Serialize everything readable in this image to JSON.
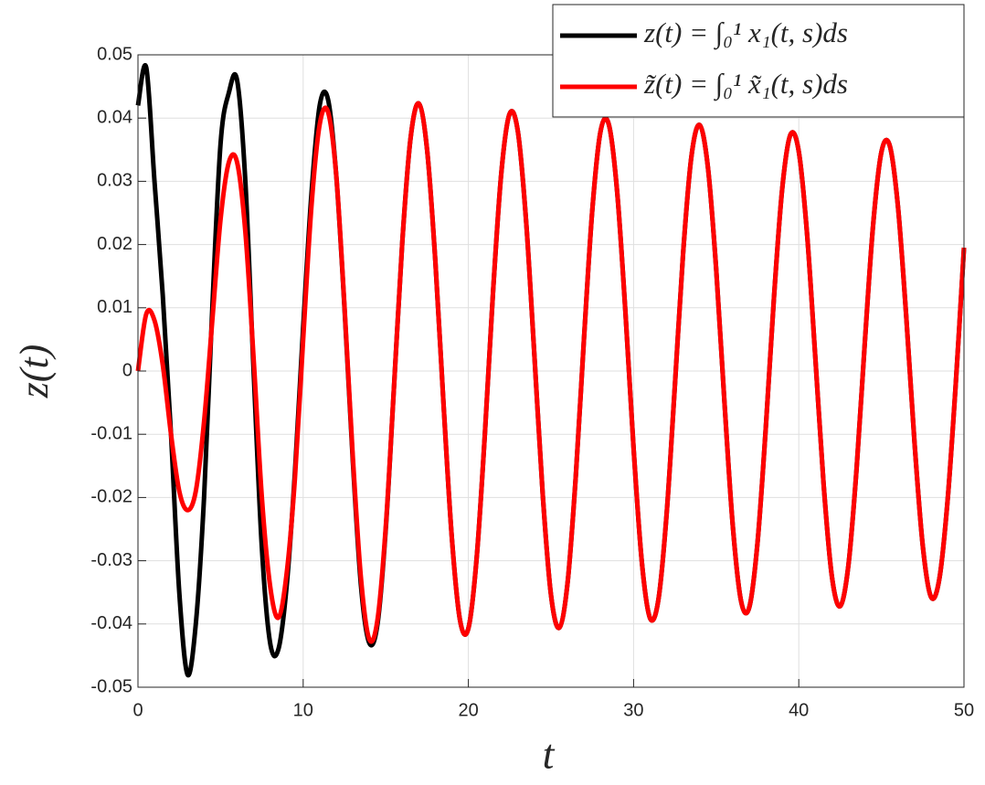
{
  "chart_data": {
    "type": "line",
    "xlabel": "t",
    "ylabel": "z(t)",
    "xlim": [
      0,
      50
    ],
    "ylim": [
      -0.05,
      0.05
    ],
    "xticks": [
      0,
      10,
      20,
      30,
      40,
      50
    ],
    "yticks": [
      -0.05,
      -0.04,
      -0.03,
      -0.02,
      -0.01,
      0,
      0.01,
      0.02,
      0.03,
      0.04,
      0.05
    ],
    "grid": true,
    "legend": "northeast",
    "x": [
      0,
      0.5,
      1,
      1.5,
      2,
      2.5,
      3,
      3.5,
      4,
      4.5,
      5,
      5.5,
      6,
      6.5,
      7,
      7.5,
      8,
      8.5,
      9,
      9.5,
      10,
      10.5,
      11,
      11.5,
      12,
      12.5,
      13,
      13.5,
      14,
      14.5,
      15,
      15.5,
      16,
      16.5,
      17,
      17.5,
      18,
      18.5,
      19,
      19.5,
      20,
      20.5,
      21,
      21.5,
      22,
      22.5,
      23,
      23.5,
      24,
      24.5,
      25,
      25.5,
      26,
      26.5,
      27,
      27.5,
      28,
      28.5,
      29,
      29.5,
      30,
      30.5,
      31,
      31.5,
      32,
      32.5,
      33,
      33.5,
      34,
      34.5,
      35,
      35.5,
      36,
      36.5,
      37,
      37.5,
      38,
      38.5,
      39,
      39.5,
      40,
      40.5,
      41,
      41.5,
      42,
      42.5,
      43,
      43.5,
      44,
      44.5,
      45,
      45.5,
      46,
      46.5,
      47,
      47.5,
      48,
      48.5,
      49,
      49.5,
      50
    ],
    "series": [
      {
        "name": "z(t) = ∫₀¹ x₁(t, s)ds",
        "color": "#000000",
        "values": [
          0.042,
          0.048,
          0.03,
          0.012,
          -0.01,
          -0.035,
          -0.048,
          -0.04,
          -0.02,
          0.01,
          0.036,
          0.044,
          0.046,
          0.03,
          0.0,
          -0.028,
          -0.043,
          -0.044,
          -0.034,
          -0.016,
          0.007,
          0.028,
          0.042,
          0.043,
          0.031,
          0.01,
          -0.014,
          -0.034,
          -0.043,
          -0.04,
          -0.025,
          -0.0024,
          0.0204,
          0.0368,
          0.0423,
          0.035,
          0.0174,
          -0.0054,
          -0.0264,
          -0.0395,
          -0.0407,
          -0.0296,
          -0.0099,
          0.0128,
          0.0315,
          0.0407,
          0.0378,
          0.0235,
          0.0023,
          -0.0195,
          -0.0354,
          -0.0406,
          -0.0336,
          -0.0167,
          0.0052,
          0.0254,
          0.0379,
          0.039,
          0.0285,
          0.0096,
          -0.0122,
          -0.0302,
          -0.0391,
          -0.0362,
          -0.0226,
          -0.0023,
          0.0187,
          0.0339,
          0.0389,
          0.0322,
          0.0161,
          -0.0049,
          -0.0243,
          -0.0363,
          -0.0374,
          -0.0272,
          -0.0091,
          0.0117,
          0.0289,
          0.0374,
          0.0347,
          0.0217,
          0.0022,
          -0.0178,
          -0.0324,
          -0.0372,
          -0.0308,
          -0.0154,
          0.0046,
          0.0231,
          0.0346,
          0.0357,
          0.0261,
          0.0088,
          -0.0111,
          -0.0275,
          -0.0357,
          -0.033,
          -0.0207,
          -0.0021,
          0.0195
        ]
      },
      {
        "name": "z̃(t) = ∫₀¹ x̃₁(t, s)ds",
        "color": "#ff0000",
        "values": [
          0.0,
          0.009,
          0.008,
          0.001,
          -0.01,
          -0.019,
          -0.022,
          -0.019,
          -0.008,
          0.008,
          0.024,
          0.033,
          0.033,
          0.022,
          0.002,
          -0.02,
          -0.034,
          -0.039,
          -0.032,
          -0.017,
          0.005,
          0.026,
          0.039,
          0.041,
          0.031,
          0.0103,
          -0.0133,
          -0.0328,
          -0.0424,
          -0.0393,
          -0.0246,
          -0.0024,
          0.0204,
          0.0368,
          0.0423,
          0.035,
          0.0174,
          -0.0054,
          -0.0264,
          -0.0395,
          -0.0407,
          -0.0296,
          -0.0099,
          0.0128,
          0.0315,
          0.0407,
          0.0378,
          0.0235,
          0.0023,
          -0.0195,
          -0.0354,
          -0.0406,
          -0.0336,
          -0.0167,
          0.0052,
          0.0254,
          0.0379,
          0.039,
          0.0285,
          0.0096,
          -0.0122,
          -0.0302,
          -0.0391,
          -0.0362,
          -0.0226,
          -0.0023,
          0.0187,
          0.0339,
          0.0389,
          0.0322,
          0.0161,
          -0.0049,
          -0.0243,
          -0.0363,
          -0.0374,
          -0.0272,
          -0.0091,
          0.0117,
          0.0289,
          0.0374,
          0.0347,
          0.0217,
          0.0022,
          -0.0178,
          -0.0324,
          -0.0372,
          -0.0308,
          -0.0154,
          0.0046,
          0.0231,
          0.0346,
          0.0357,
          0.0261,
          0.0088,
          -0.0111,
          -0.0275,
          -0.0357,
          -0.033,
          -0.0207,
          -0.0021,
          0.0195
        ]
      }
    ]
  }
}
